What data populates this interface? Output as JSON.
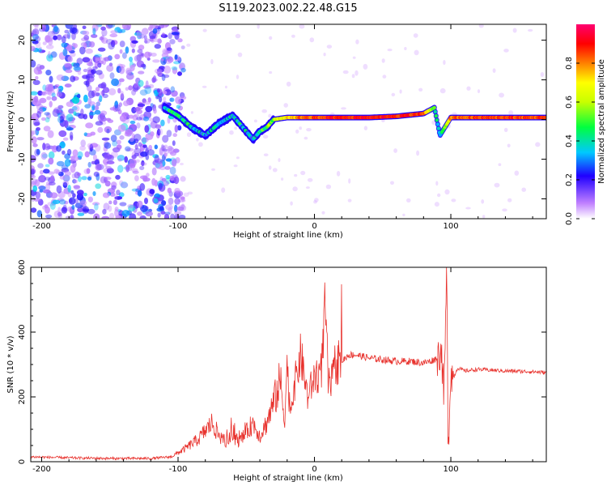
{
  "figure_title": "S119.2023.002.22.48.G15",
  "colors": {
    "snr_line": "#e8322d",
    "axis": "#000000"
  },
  "chart_data": [
    {
      "type": "heatmap",
      "title": "S119.2023.002.22.48.G15",
      "xlabel": "Height of straight line (km)",
      "ylabel": "Frequency (Hz)",
      "xlim": [
        -208,
        170
      ],
      "ylim": [
        -25,
        24
      ],
      "x_ticks": [
        -200,
        -100,
        0,
        100
      ],
      "y_ticks": [
        -20,
        -10,
        0,
        10,
        20
      ],
      "colorbar": {
        "label": "Normalized spectral amplitude",
        "range": [
          0.0,
          1.0
        ],
        "ticks": [
          "0.0",
          "0.2",
          "0.4",
          "0.6",
          "0.8"
        ],
        "colors": [
          "#ffffff",
          "#c080ff",
          "#2000ff",
          "#00c8ff",
          "#00ff40",
          "#ffff00",
          "#ff8000",
          "#ff0000",
          "#ff00a0"
        ]
      },
      "ridge": {
        "description_points_x": [
          -110,
          -100,
          -90,
          -80,
          -70,
          -60,
          -50,
          -45,
          -40,
          -35,
          -30,
          -20,
          -10,
          0,
          20,
          40,
          60,
          80,
          88,
          92,
          100,
          120,
          150,
          170
        ],
        "freq_hz": [
          3,
          1,
          -2,
          -4,
          -1,
          1,
          -3,
          -5,
          -3,
          -2,
          0,
          0.5,
          0.5,
          0.5,
          0.5,
          0.5,
          0.8,
          1.5,
          3,
          -4,
          0.5,
          0.5,
          0.5,
          0.5
        ],
        "amplitude": [
          0.4,
          0.4,
          0.35,
          0.3,
          0.35,
          0.4,
          0.35,
          0.3,
          0.4,
          0.5,
          0.6,
          0.7,
          0.8,
          0.85,
          0.9,
          0.9,
          0.9,
          0.85,
          0.5,
          0.3,
          0.8,
          0.85,
          0.85,
          0.85
        ]
      }
    },
    {
      "type": "line",
      "xlabel": "Height of straight line (km)",
      "ylabel": "SNR (10 * v/v)",
      "xlim": [
        -208,
        170
      ],
      "ylim": [
        0,
        600
      ],
      "x_ticks": [
        -200,
        -100,
        0,
        100
      ],
      "y_ticks": [
        0,
        200,
        400,
        600
      ],
      "series": [
        {
          "x": [
            -208,
            -180,
            -150,
            -120,
            -105,
            -95,
            -85,
            -75,
            -70,
            -65,
            -60,
            -55,
            -50,
            -45,
            -40,
            -35,
            -30,
            -25,
            -22,
            -20,
            -18,
            -15,
            -10,
            -5,
            0,
            5,
            8,
            10,
            12,
            15,
            20,
            25,
            30,
            40,
            50,
            60,
            70,
            80,
            85,
            90,
            93,
            95,
            97,
            98,
            100,
            102,
            105,
            110,
            120,
            140,
            160,
            170
          ],
          "y": [
            15,
            12,
            10,
            10,
            15,
            40,
            70,
            120,
            80,
            60,
            80,
            60,
            90,
            120,
            80,
            120,
            180,
            250,
            130,
            300,
            150,
            230,
            330,
            200,
            260,
            280,
            480,
            250,
            230,
            300,
            310,
            330,
            330,
            320,
            315,
            310,
            310,
            305,
            310,
            320,
            350,
            200,
            600,
            40,
            280,
            260,
            290,
            280,
            285,
            280,
            278,
            275
          ]
        }
      ]
    }
  ]
}
